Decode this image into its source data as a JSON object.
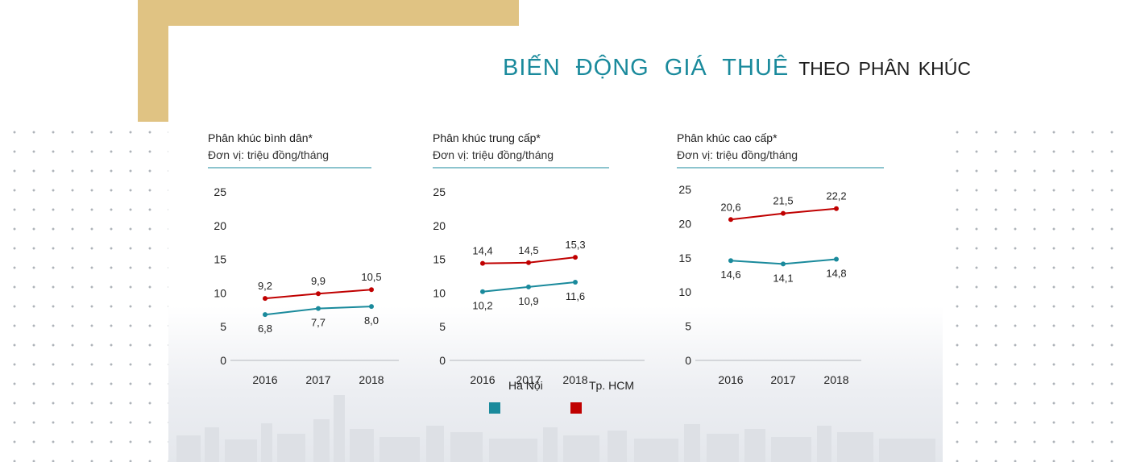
{
  "title": {
    "part1": "BIẾN ĐỘNG GIÁ THUÊ",
    "part2": "THEO PHÂN KHÚC"
  },
  "colors": {
    "ha_noi": "#1a8a9c",
    "tp_hcm": "#c00000",
    "accent_gold": "#e0c383",
    "title_teal": "#1a8a9c"
  },
  "legend": [
    {
      "label": "Hà Nội",
      "color": "#1a8a9c"
    },
    {
      "label": "Tp. HCM",
      "color": "#c00000"
    }
  ],
  "chart_data": [
    {
      "type": "line",
      "title": "Phân khúc bình dân*",
      "subtitle": "Đơn vị: triệu đồng/tháng",
      "categories": [
        "2016",
        "2017",
        "2018"
      ],
      "ylim": [
        0,
        25
      ],
      "yticks": [
        "0",
        "5",
        "10",
        "15",
        "20",
        "25"
      ],
      "series": [
        {
          "name": "Hà Nội",
          "values": [
            6.8,
            7.7,
            8.0
          ],
          "labels": [
            "6,8",
            "7,7",
            "8,0"
          ]
        },
        {
          "name": "Tp. HCM",
          "values": [
            9.2,
            9.9,
            10.5
          ],
          "labels": [
            "9,2",
            "9,9",
            "10,5"
          ]
        }
      ]
    },
    {
      "type": "line",
      "title": "Phân khúc trung cấp*",
      "subtitle": "Đơn vị:  triệu đồng/tháng",
      "categories": [
        "2016",
        "2017",
        "2018"
      ],
      "ylim": [
        0,
        25
      ],
      "yticks": [
        "0",
        "5",
        "10",
        "15",
        "20",
        "25"
      ],
      "series": [
        {
          "name": "Hà Nội",
          "values": [
            10.2,
            10.9,
            11.6
          ],
          "labels": [
            "10,2",
            "10,9",
            "11,6"
          ]
        },
        {
          "name": "Tp. HCM",
          "values": [
            14.4,
            14.5,
            15.3
          ],
          "labels": [
            "14,4",
            "14,5",
            "15,3"
          ]
        }
      ]
    },
    {
      "type": "line",
      "title": "Phân khúc cao cấp*",
      "subtitle": "Đơn vị:  triệu đồng/tháng",
      "categories": [
        "2016",
        "2017",
        "2018"
      ],
      "ylim": [
        0,
        25
      ],
      "yticks": [
        "0",
        "5",
        "10",
        "15",
        "20",
        "25"
      ],
      "series": [
        {
          "name": "Hà Nội",
          "values": [
            14.6,
            14.1,
            14.8
          ],
          "labels": [
            "14,6",
            "14,1",
            "14,8"
          ]
        },
        {
          "name": "Tp. HCM",
          "values": [
            20.6,
            21.5,
            22.2
          ],
          "labels": [
            "20,6",
            "21,5",
            "22,2"
          ]
        }
      ]
    }
  ]
}
